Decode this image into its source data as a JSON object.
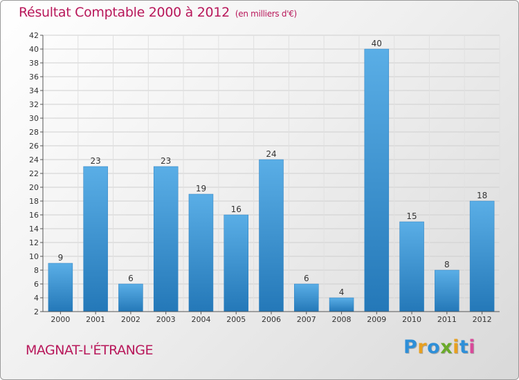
{
  "header": {
    "title": "Résultat Comptable 2000 à 2012",
    "unit": "(en milliers d'€)"
  },
  "commune": "MAGNAT-L'ÉTRANGE",
  "brand": {
    "letters": [
      "P",
      "r",
      "o",
      "x",
      "i",
      "t",
      "i"
    ],
    "colors": [
      "#2e8fd8",
      "#e8a020",
      "#2e8fd8",
      "#6aaa2a",
      "#e8a020",
      "#2e8fd8",
      "#d94a9a"
    ]
  },
  "colors": {
    "accent": "#b8175a",
    "bar_top": "#5aaee6",
    "bar_bottom": "#2478b8"
  },
  "chart_data": {
    "type": "bar",
    "title": "Résultat Comptable 2000 à 2012",
    "subtitle": "(en milliers d'€)",
    "xlabel": "",
    "ylabel": "",
    "categories": [
      "2000",
      "2001",
      "2002",
      "2003",
      "2004",
      "2005",
      "2006",
      "2007",
      "2008",
      "2009",
      "2010",
      "2011",
      "2012"
    ],
    "values": [
      9,
      23,
      6,
      23,
      19,
      16,
      24,
      6,
      4,
      40,
      15,
      8,
      18
    ],
    "ylim": [
      2,
      42
    ],
    "yticks": [
      2,
      4,
      6,
      8,
      10,
      12,
      14,
      16,
      18,
      20,
      22,
      24,
      26,
      28,
      30,
      32,
      34,
      36,
      38,
      40,
      42
    ],
    "grid": true
  }
}
